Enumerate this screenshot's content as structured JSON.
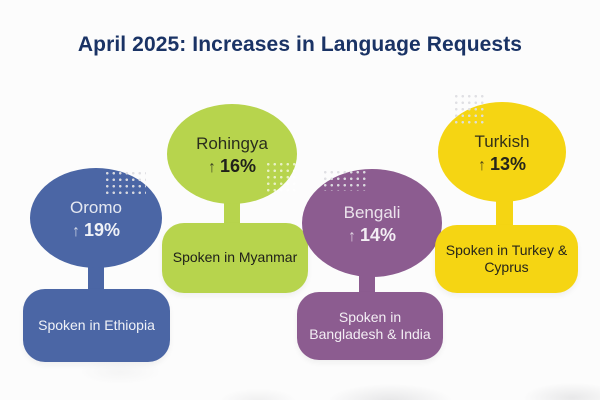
{
  "title": "April 2025: Increases in Language Requests",
  "title_color": "#1a3365",
  "background_color": "#fcfcfc",
  "languages": [
    {
      "name": "Oromo",
      "arrow": "↑",
      "percent": "19%",
      "region_lines": [
        "Spoken in Ethiopia"
      ],
      "bubble_color": "#4b66a5",
      "text_color": "#f0f2f7"
    },
    {
      "name": "Rohingya",
      "arrow": "↑",
      "percent": "16%",
      "region_lines": [
        "Spoken in Myanmar"
      ],
      "bubble_color": "#b7d44d",
      "text_color": "#20211a"
    },
    {
      "name": "Bengali",
      "arrow": "↑",
      "percent": "14%",
      "region_lines": [
        "Spoken in",
        "Bangladesh & India"
      ],
      "bubble_color": "#8c5c90",
      "text_color": "#f3eef4"
    },
    {
      "name": "Turkish",
      "arrow": "↑",
      "percent": "13%",
      "region_lines": [
        "Spoken in Turkey &",
        "Cyprus"
      ],
      "bubble_color": "#f5d513",
      "text_color": "#26251a"
    }
  ]
}
